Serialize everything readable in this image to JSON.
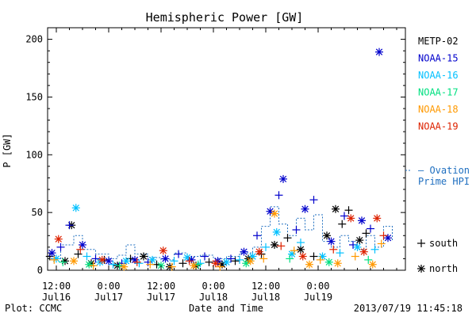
{
  "chart_data": {
    "type": "scatter",
    "title": "Hemispheric Power [GW]",
    "ylabel": "P [GW]",
    "xlabel": "Date and Time",
    "ylim": [
      0,
      210
    ],
    "xlim": [
      "2013-07-16 10:00",
      "2013-07-19 20:00"
    ],
    "y_ticks": [
      0,
      50,
      100,
      150,
      200
    ],
    "x_ticks": [
      {
        "t": "2013-07-16 12:00",
        "line1": "12:00",
        "line2": "Jul16"
      },
      {
        "t": "2013-07-17 00:00",
        "line1": "0:00",
        "line2": "Jul17"
      },
      {
        "t": "2013-07-17 12:00",
        "line1": "12:00",
        "line2": "Jul17"
      },
      {
        "t": "2013-07-18 00:00",
        "line1": "0:00",
        "line2": "Jul18"
      },
      {
        "t": "2013-07-18 12:00",
        "line1": "12:00",
        "line2": "Jul18"
      },
      {
        "t": "2013-07-19 00:00",
        "line1": "0:00",
        "line2": "Jul19"
      }
    ],
    "legend_placement": "right",
    "series": [
      {
        "name": "METP-02",
        "color": "#000000",
        "points": [
          [
            "2013-07-16 10:30",
            12,
            "+"
          ],
          [
            "2013-07-16 14:00",
            8,
            "*"
          ],
          [
            "2013-07-16 15:30",
            39,
            "*"
          ],
          [
            "2013-07-16 17:00",
            14,
            "+"
          ],
          [
            "2013-07-16 20:00",
            6,
            "*"
          ],
          [
            "2013-07-16 23:00",
            9,
            "+"
          ],
          [
            "2013-07-17 02:00",
            4,
            "*"
          ],
          [
            "2013-07-17 05:00",
            10,
            "+"
          ],
          [
            "2013-07-17 08:00",
            12,
            "*"
          ],
          [
            "2013-07-17 11:00",
            5,
            "+"
          ],
          [
            "2013-07-17 14:00",
            3,
            "*"
          ],
          [
            "2013-07-17 17:00",
            6,
            "+"
          ],
          [
            "2013-07-17 20:00",
            4,
            "*"
          ],
          [
            "2013-07-17 23:00",
            7,
            "+"
          ],
          [
            "2013-07-18 02:00",
            5,
            "*"
          ],
          [
            "2013-07-18 05:00",
            8,
            "+"
          ],
          [
            "2013-07-18 08:00",
            10,
            "*"
          ],
          [
            "2013-07-18 11:00",
            14,
            "+"
          ],
          [
            "2013-07-18 14:00",
            22,
            "*"
          ],
          [
            "2013-07-18 17:00",
            28,
            "+"
          ],
          [
            "2013-07-18 20:00",
            18,
            "*"
          ],
          [
            "2013-07-18 23:00",
            12,
            "+"
          ],
          [
            "2013-07-19 02:00",
            30,
            "*"
          ],
          [
            "2013-07-19 04:00",
            53,
            "*"
          ],
          [
            "2013-07-19 05:30",
            40,
            "+"
          ],
          [
            "2013-07-19 07:00",
            52,
            "+"
          ],
          [
            "2013-07-19 09:30",
            26,
            "*"
          ],
          [
            "2013-07-19 11:00",
            32,
            "+"
          ]
        ]
      },
      {
        "name": "NOAA-15",
        "color": "#0000cc",
        "points": [
          [
            "2013-07-16 11:00",
            15,
            "*"
          ],
          [
            "2013-07-16 13:00",
            20,
            "+"
          ],
          [
            "2013-07-16 15:00",
            39,
            "+"
          ],
          [
            "2013-07-16 18:00",
            22,
            "*"
          ],
          [
            "2013-07-16 21:00",
            10,
            "+"
          ],
          [
            "2013-07-17 00:00",
            8,
            "*"
          ],
          [
            "2013-07-17 03:00",
            6,
            "+"
          ],
          [
            "2013-07-17 06:00",
            9,
            "*"
          ],
          [
            "2013-07-17 09:00",
            7,
            "+"
          ],
          [
            "2013-07-17 13:00",
            10,
            "*"
          ],
          [
            "2013-07-17 16:00",
            14,
            "+"
          ],
          [
            "2013-07-17 19:00",
            9,
            "*"
          ],
          [
            "2013-07-17 22:00",
            12,
            "+"
          ],
          [
            "2013-07-18 01:00",
            8,
            "*"
          ],
          [
            "2013-07-18 04:00",
            10,
            "+"
          ],
          [
            "2013-07-18 07:00",
            16,
            "*"
          ],
          [
            "2013-07-18 10:00",
            30,
            "+"
          ],
          [
            "2013-07-18 13:00",
            51,
            "*"
          ],
          [
            "2013-07-18 15:00",
            65,
            "+"
          ],
          [
            "2013-07-18 16:00",
            79,
            "*"
          ],
          [
            "2013-07-18 19:00",
            35,
            "+"
          ],
          [
            "2013-07-18 21:00",
            53,
            "*"
          ],
          [
            "2013-07-18 23:00",
            61,
            "+"
          ],
          [
            "2013-07-19 03:00",
            25,
            "*"
          ],
          [
            "2013-07-19 06:00",
            47,
            "+"
          ],
          [
            "2013-07-19 08:00",
            22,
            "+"
          ],
          [
            "2013-07-19 10:00",
            43,
            "*"
          ],
          [
            "2013-07-19 12:00",
            36,
            "+"
          ],
          [
            "2013-07-19 14:00",
            189,
            "*"
          ],
          [
            "2013-07-19 16:00",
            28,
            "*"
          ]
        ]
      },
      {
        "name": "NOAA-16",
        "color": "#00c0ff",
        "points": [
          [
            "2013-07-16 12:00",
            10,
            "*"
          ],
          [
            "2013-07-16 16:30",
            54,
            "*"
          ],
          [
            "2013-07-16 19:00",
            12,
            "+"
          ],
          [
            "2013-07-16 22:00",
            7,
            "*"
          ],
          [
            "2013-07-17 01:00",
            5,
            "+"
          ],
          [
            "2013-07-17 04:00",
            8,
            "*"
          ],
          [
            "2013-07-17 07:00",
            6,
            "+"
          ],
          [
            "2013-07-17 10:00",
            9,
            "*"
          ],
          [
            "2013-07-17 15:00",
            8,
            "+"
          ],
          [
            "2013-07-17 18:00",
            11,
            "*"
          ],
          [
            "2013-07-17 21:00",
            6,
            "+"
          ],
          [
            "2013-07-18 03:00",
            7,
            "*"
          ],
          [
            "2013-07-18 06:00",
            9,
            "+"
          ],
          [
            "2013-07-18 09:00",
            12,
            "*"
          ],
          [
            "2013-07-18 12:00",
            20,
            "+"
          ],
          [
            "2013-07-18 14:30",
            33,
            "*"
          ],
          [
            "2013-07-18 18:00",
            14,
            "*"
          ],
          [
            "2013-07-18 20:00",
            24,
            "+"
          ],
          [
            "2013-07-19 01:00",
            12,
            "*"
          ],
          [
            "2013-07-19 05:00",
            15,
            "+"
          ],
          [
            "2013-07-19 09:00",
            20,
            "*"
          ],
          [
            "2013-07-19 13:00",
            18,
            "+"
          ]
        ]
      },
      {
        "name": "NOAA-17",
        "color": "#00e080",
        "points": [
          [
            "2013-07-16 13:30",
            7,
            "+"
          ],
          [
            "2013-07-16 19:30",
            5,
            "*"
          ],
          [
            "2013-07-17 02:30",
            4,
            "+"
          ],
          [
            "2013-07-17 12:00",
            4,
            "*"
          ],
          [
            "2013-07-17 20:30",
            5,
            "+"
          ],
          [
            "2013-07-18 07:30",
            6,
            "*"
          ],
          [
            "2013-07-18 17:30",
            10,
            "+"
          ],
          [
            "2013-07-19 02:30",
            7,
            "*"
          ],
          [
            "2013-07-19 11:30",
            9,
            "+"
          ]
        ]
      },
      {
        "name": "NOAA-18",
        "color": "#ff9900",
        "points": [
          [
            "2013-07-16 11:30",
            9,
            "+"
          ],
          [
            "2013-07-16 16:00",
            8,
            "*"
          ],
          [
            "2013-07-16 20:30",
            4,
            "+"
          ],
          [
            "2013-07-17 03:30",
            3,
            "*"
          ],
          [
            "2013-07-17 09:30",
            5,
            "+"
          ],
          [
            "2013-07-17 14:30",
            3,
            "+"
          ],
          [
            "2013-07-17 19:30",
            4,
            "*"
          ],
          [
            "2013-07-18 01:30",
            3,
            "+"
          ],
          [
            "2013-07-18 08:30",
            8,
            "*"
          ],
          [
            "2013-07-18 11:30",
            10,
            "+"
          ],
          [
            "2013-07-18 14:00",
            49,
            "*"
          ],
          [
            "2013-07-18 18:30",
            17,
            "+"
          ],
          [
            "2013-07-18 22:00",
            5,
            "*"
          ],
          [
            "2013-07-19 00:30",
            9,
            "+"
          ],
          [
            "2013-07-19 04:30",
            6,
            "*"
          ],
          [
            "2013-07-19 08:30",
            12,
            "+"
          ],
          [
            "2013-07-19 12:30",
            5,
            "*"
          ],
          [
            "2013-07-19 14:30",
            23,
            "+"
          ]
        ]
      },
      {
        "name": "NOAA-19",
        "color": "#dd2200",
        "points": [
          [
            "2013-07-16 12:30",
            27,
            "*"
          ],
          [
            "2013-07-16 17:30",
            18,
            "+"
          ],
          [
            "2013-07-16 22:30",
            9,
            "*"
          ],
          [
            "2013-07-17 06:30",
            7,
            "+"
          ],
          [
            "2013-07-17 12:30",
            17,
            "*"
          ],
          [
            "2013-07-17 18:30",
            8,
            "+"
          ],
          [
            "2013-07-18 00:30",
            6,
            "*"
          ],
          [
            "2013-07-18 10:30",
            16,
            "*"
          ],
          [
            "2013-07-18 15:30",
            21,
            "+"
          ],
          [
            "2013-07-18 20:30",
            12,
            "*"
          ],
          [
            "2013-07-19 03:30",
            18,
            "+"
          ],
          [
            "2013-07-19 07:30",
            45,
            "*"
          ],
          [
            "2013-07-19 10:30",
            16,
            "*"
          ],
          [
            "2013-07-19 13:30",
            45,
            "*"
          ],
          [
            "2013-07-19 15:00",
            30,
            "+"
          ]
        ]
      }
    ],
    "ovation_hpi": {
      "name": "Ovation Prime HPI",
      "label_line1": "— Ovation",
      "label_line2": "Prime HPI",
      "color": "#1f6fc0",
      "points": [
        [
          "2013-07-16 10:00",
          10
        ],
        [
          "2013-07-16 13:00",
          22
        ],
        [
          "2013-07-16 16:00",
          30
        ],
        [
          "2013-07-16 18:00",
          18
        ],
        [
          "2013-07-16 21:00",
          14
        ],
        [
          "2013-07-17 00:00",
          10
        ],
        [
          "2013-07-17 02:00",
          13
        ],
        [
          "2013-07-17 04:00",
          22
        ],
        [
          "2013-07-17 06:00",
          14
        ],
        [
          "2013-07-17 09:00",
          11
        ],
        [
          "2013-07-17 12:00",
          9
        ],
        [
          "2013-07-17 15:00",
          15
        ],
        [
          "2013-07-17 18:00",
          12
        ],
        [
          "2013-07-17 21:00",
          13
        ],
        [
          "2013-07-18 00:00",
          10
        ],
        [
          "2013-07-18 03:00",
          12
        ],
        [
          "2013-07-18 06:00",
          15
        ],
        [
          "2013-07-18 09:00",
          20
        ],
        [
          "2013-07-18 11:00",
          38
        ],
        [
          "2013-07-18 13:00",
          55
        ],
        [
          "2013-07-18 15:00",
          40
        ],
        [
          "2013-07-18 17:00",
          30
        ],
        [
          "2013-07-18 19:00",
          45
        ],
        [
          "2013-07-18 21:00",
          35
        ],
        [
          "2013-07-18 23:00",
          48
        ],
        [
          "2013-07-19 01:00",
          25
        ],
        [
          "2013-07-19 03:00",
          20
        ],
        [
          "2013-07-19 05:00",
          30
        ],
        [
          "2013-07-19 07:00",
          25
        ],
        [
          "2013-07-19 09:00",
          18
        ],
        [
          "2013-07-19 11:00",
          30
        ],
        [
          "2013-07-19 13:00",
          20
        ],
        [
          "2013-07-19 15:00",
          38
        ],
        [
          "2013-07-19 17:00",
          25
        ]
      ]
    },
    "marker_legend": [
      {
        "symbol": "+",
        "label": "south"
      },
      {
        "symbol": "*",
        "label": "north"
      }
    ]
  },
  "footer": {
    "left": "Plot: CCMC",
    "right": "2013/07/19 11:45:18"
  }
}
